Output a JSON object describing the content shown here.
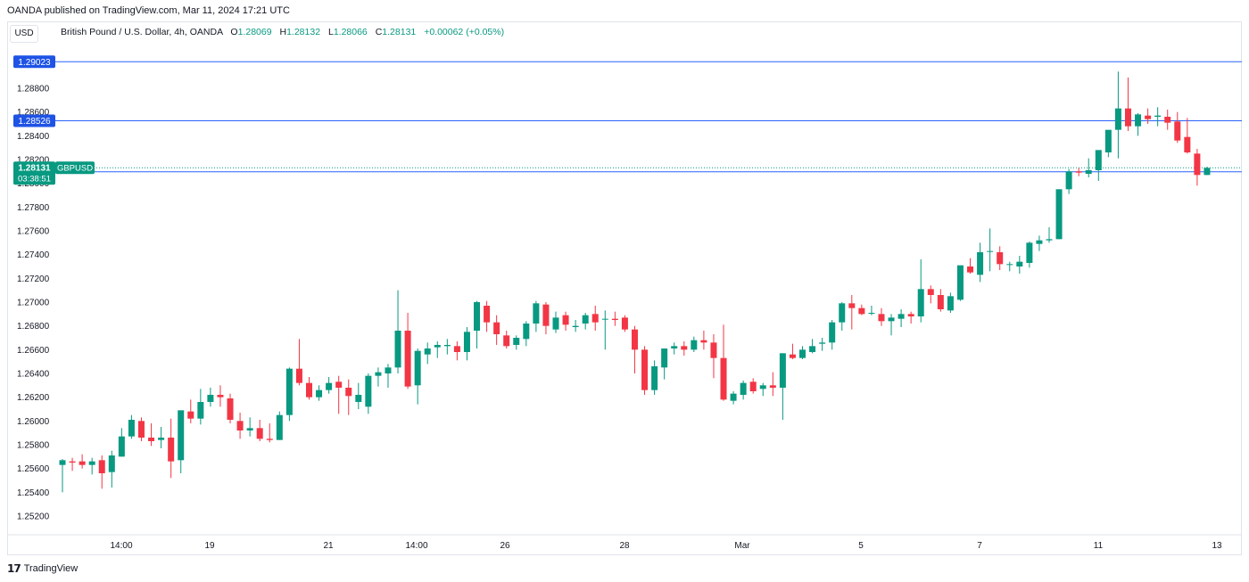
{
  "header": {
    "publisher": "OANDA published on TradingView.com, Mar 11, 2024 17:21 UTC"
  },
  "currency": "USD",
  "legend": {
    "symbol": "British Pound / U.S. Dollar, 4h, OANDA",
    "open_label": "O",
    "open": "1.28069",
    "high_label": "H",
    "high": "1.28132",
    "low_label": "L",
    "low": "1.28066",
    "close_label": "C",
    "close": "1.28131",
    "change": "+0.00062 (+0.05%)"
  },
  "footer": {
    "brand": "TradingView"
  },
  "colors": {
    "up": "#089981",
    "down": "#f23645",
    "line": "#2962ff",
    "tag_line": "#1e53e5",
    "grid_text": "#131722"
  },
  "chart_data": {
    "type": "candlestick",
    "y_ticks": [
      "1.28800",
      "1.28600",
      "1.28400",
      "1.28200",
      "1.28000",
      "1.27800",
      "1.27600",
      "1.27400",
      "1.27200",
      "1.27000",
      "1.26800",
      "1.26600",
      "1.26400",
      "1.26200",
      "1.26000",
      "1.25800",
      "1.25600",
      "1.25400",
      "1.25200"
    ],
    "y_range": [
      1.2505,
      1.2945
    ],
    "x_labels": [
      "14:00",
      "19",
      "21",
      "14:00",
      "26",
      "28",
      "Mar",
      "5",
      "7",
      "11",
      "13"
    ],
    "horizontal_levels": [
      {
        "value": 1.29023,
        "label": "1.29023"
      },
      {
        "value": 1.28526,
        "label": "1.28526"
      },
      {
        "value": 1.28097,
        "label": "1.28097"
      }
    ],
    "current_price": {
      "value": 1.28131,
      "label": "1.28131",
      "countdown": "03:38:51",
      "symbol_tag": "GBPUSD"
    },
    "candles": [
      [
        1.2563,
        1.2568,
        1.254,
        1.2567
      ],
      [
        1.2566,
        1.2569,
        1.2558,
        1.2565
      ],
      [
        1.2566,
        1.2572,
        1.256,
        1.2563
      ],
      [
        1.2563,
        1.2569,
        1.2555,
        1.2566
      ],
      [
        1.2567,
        1.2571,
        1.2543,
        1.2556
      ],
      [
        1.2557,
        1.2575,
        1.2544,
        1.2571
      ],
      [
        1.257,
        1.2594,
        1.257,
        1.2587
      ],
      [
        1.2587,
        1.2605,
        1.2585,
        1.2601
      ],
      [
        1.26,
        1.2603,
        1.2583,
        1.2586
      ],
      [
        1.2586,
        1.2598,
        1.2579,
        1.2583
      ],
      [
        1.2584,
        1.2595,
        1.2577,
        1.2586
      ],
      [
        1.2586,
        1.2602,
        1.2552,
        1.2566
      ],
      [
        1.2567,
        1.2607,
        1.2556,
        1.2609
      ],
      [
        1.2608,
        1.2618,
        1.2598,
        1.2602
      ],
      [
        1.2602,
        1.2627,
        1.2597,
        1.2616
      ],
      [
        1.2616,
        1.2628,
        1.2612,
        1.2622
      ],
      [
        1.2622,
        1.263,
        1.2612,
        1.262
      ],
      [
        1.2619,
        1.2623,
        1.2598,
        1.2601
      ],
      [
        1.26,
        1.2607,
        1.2585,
        1.2592
      ],
      [
        1.2592,
        1.2603,
        1.2587,
        1.2594
      ],
      [
        1.2594,
        1.2601,
        1.2583,
        1.2585
      ],
      [
        1.2585,
        1.2598,
        1.2582,
        1.2584
      ],
      [
        1.2584,
        1.2608,
        1.2584,
        1.2605
      ],
      [
        1.2605,
        1.2645,
        1.26,
        1.2644
      ],
      [
        1.2644,
        1.2669,
        1.263,
        1.2632
      ],
      [
        1.2632,
        1.2637,
        1.2618,
        1.262
      ],
      [
        1.262,
        1.263,
        1.2617,
        1.2626
      ],
      [
        1.2626,
        1.2637,
        1.2623,
        1.2632
      ],
      [
        1.2633,
        1.2638,
        1.2606,
        1.2628
      ],
      [
        1.2628,
        1.2635,
        1.2605,
        1.2621
      ],
      [
        1.2616,
        1.2632,
        1.261,
        1.2622
      ],
      [
        1.2612,
        1.264,
        1.2606,
        1.2638
      ],
      [
        1.2638,
        1.2645,
        1.2629,
        1.2641
      ],
      [
        1.264,
        1.2648,
        1.2628,
        1.2645
      ],
      [
        1.2645,
        1.271,
        1.264,
        1.2676
      ],
      [
        1.2676,
        1.2691,
        1.2627,
        1.2629
      ],
      [
        1.263,
        1.2661,
        1.2614,
        1.2659
      ],
      [
        1.2656,
        1.2666,
        1.2648,
        1.2661
      ],
      [
        1.2662,
        1.2667,
        1.2653,
        1.2664
      ],
      [
        1.2663,
        1.2669,
        1.2656,
        1.2664
      ],
      [
        1.2663,
        1.2667,
        1.2651,
        1.2658
      ],
      [
        1.2658,
        1.2679,
        1.2651,
        1.2675
      ],
      [
        1.2676,
        1.2701,
        1.2661,
        1.27
      ],
      [
        1.2697,
        1.2701,
        1.2675,
        1.2683
      ],
      [
        1.2683,
        1.2689,
        1.2664,
        1.2673
      ],
      [
        1.2672,
        1.2676,
        1.2661,
        1.2663
      ],
      [
        1.2664,
        1.2672,
        1.266,
        1.267
      ],
      [
        1.2669,
        1.2684,
        1.2663,
        1.2682
      ],
      [
        1.2682,
        1.2701,
        1.2675,
        1.2699
      ],
      [
        1.2698,
        1.27,
        1.2673,
        1.268
      ],
      [
        1.2677,
        1.2692,
        1.2674,
        1.2687
      ],
      [
        1.2689,
        1.2692,
        1.2676,
        1.2681
      ],
      [
        1.2679,
        1.2685,
        1.2675,
        1.268
      ],
      [
        1.2682,
        1.2691,
        1.2677,
        1.2689
      ],
      [
        1.269,
        1.2697,
        1.2676,
        1.2683
      ],
      [
        1.2686,
        1.2693,
        1.266,
        1.2686
      ],
      [
        1.2686,
        1.2692,
        1.268,
        1.2685
      ],
      [
        1.2687,
        1.2689,
        1.2675,
        1.2677
      ],
      [
        1.2677,
        1.268,
        1.264,
        1.266
      ],
      [
        1.266,
        1.2663,
        1.2622,
        1.2626
      ],
      [
        1.2626,
        1.2651,
        1.2622,
        1.2646
      ],
      [
        1.2645,
        1.2661,
        1.2635,
        1.2661
      ],
      [
        1.2661,
        1.2666,
        1.2656,
        1.2663
      ],
      [
        1.2663,
        1.2667,
        1.2655,
        1.266
      ],
      [
        1.266,
        1.2671,
        1.2658,
        1.2668
      ],
      [
        1.2668,
        1.2676,
        1.266,
        1.2666
      ],
      [
        1.2666,
        1.2673,
        1.2636,
        1.2653
      ],
      [
        1.2653,
        1.2681,
        1.2617,
        1.2618
      ],
      [
        1.2617,
        1.2625,
        1.2614,
        1.2623
      ],
      [
        1.2622,
        1.2634,
        1.2618,
        1.2632
      ],
      [
        1.2633,
        1.2636,
        1.2623,
        1.2625
      ],
      [
        1.2627,
        1.2632,
        1.2621,
        1.263
      ],
      [
        1.263,
        1.2641,
        1.2621,
        1.2628
      ],
      [
        1.2628,
        1.2657,
        1.2601,
        1.2657
      ],
      [
        1.2656,
        1.2665,
        1.2652,
        1.2653
      ],
      [
        1.2653,
        1.2663,
        1.2652,
        1.266
      ],
      [
        1.2658,
        1.2669,
        1.2657,
        1.2663
      ],
      [
        1.2665,
        1.267,
        1.2659,
        1.2666
      ],
      [
        1.2666,
        1.2685,
        1.266,
        1.2683
      ],
      [
        1.2683,
        1.27,
        1.2676,
        1.2699
      ],
      [
        1.2699,
        1.2706,
        1.2677,
        1.2695
      ],
      [
        1.2695,
        1.2698,
        1.2689,
        1.269
      ],
      [
        1.2691,
        1.2697,
        1.2689,
        1.2691
      ],
      [
        1.269,
        1.2695,
        1.268,
        1.2684
      ],
      [
        1.2684,
        1.269,
        1.2672,
        1.2687
      ],
      [
        1.2686,
        1.2694,
        1.2679,
        1.269
      ],
      [
        1.269,
        1.2692,
        1.2682,
        1.2688
      ],
      [
        1.2688,
        1.2736,
        1.2683,
        1.2711
      ],
      [
        1.2711,
        1.2714,
        1.2699,
        1.2706
      ],
      [
        1.2706,
        1.2711,
        1.2692,
        1.2694
      ],
      [
        1.2693,
        1.2708,
        1.2691,
        1.2705
      ],
      [
        1.2702,
        1.273,
        1.2701,
        1.2731
      ],
      [
        1.273,
        1.2737,
        1.2724,
        1.2725
      ],
      [
        1.2723,
        1.275,
        1.2717,
        1.2742
      ],
      [
        1.2743,
        1.2762,
        1.2726,
        1.2743
      ],
      [
        1.2742,
        1.2747,
        1.2727,
        1.2732
      ],
      [
        1.2732,
        1.2734,
        1.2726,
        1.2732
      ],
      [
        1.273,
        1.2739,
        1.2724,
        1.2734
      ],
      [
        1.2733,
        1.2751,
        1.2729,
        1.275
      ],
      [
        1.2749,
        1.2756,
        1.2743,
        1.2752
      ],
      [
        1.2752,
        1.2763,
        1.275,
        1.2753
      ],
      [
        1.2753,
        1.2795,
        1.2753,
        1.2795
      ],
      [
        1.2795,
        1.2812,
        1.2791,
        1.281
      ],
      [
        1.281,
        1.2813,
        1.2806,
        1.2809
      ],
      [
        1.2808,
        1.2821,
        1.2805,
        1.2811
      ],
      [
        1.2811,
        1.2825,
        1.2802,
        1.2828
      ],
      [
        1.2826,
        1.2844,
        1.2822,
        1.2845
      ],
      [
        1.2845,
        1.2894,
        1.2821,
        1.2863
      ],
      [
        1.2863,
        1.2889,
        1.2844,
        1.2848
      ],
      [
        1.2848,
        1.2859,
        1.284,
        1.2858
      ],
      [
        1.2857,
        1.2863,
        1.285,
        1.2854
      ],
      [
        1.2856,
        1.2864,
        1.2848,
        1.2857
      ],
      [
        1.2856,
        1.2862,
        1.2845,
        1.2851
      ],
      [
        1.2852,
        1.286,
        1.2834,
        1.2836
      ],
      [
        1.2839,
        1.2855,
        1.2825,
        1.2826
      ],
      [
        1.2825,
        1.2829,
        1.2798,
        1.2807
      ],
      [
        1.2807,
        1.2814,
        1.2807,
        1.2813
      ]
    ]
  }
}
